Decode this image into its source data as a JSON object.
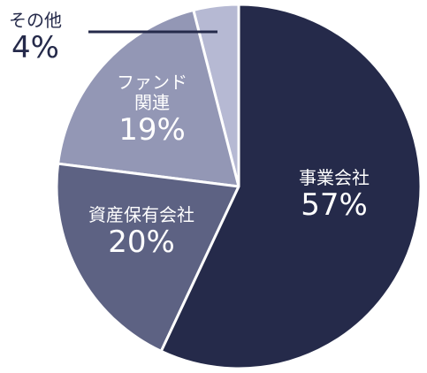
{
  "chart_data": {
    "type": "pie",
    "categories": [
      "事業会社",
      "資産保有会社",
      "ファンド関連",
      "その他"
    ],
    "values": [
      57,
      20,
      19,
      4
    ],
    "value_labels": [
      "57%",
      "20%",
      "19%",
      "4%"
    ],
    "colors": [
      "#252a4a",
      "#5d6283",
      "#9397b5",
      "#b6b9d3"
    ]
  }
}
